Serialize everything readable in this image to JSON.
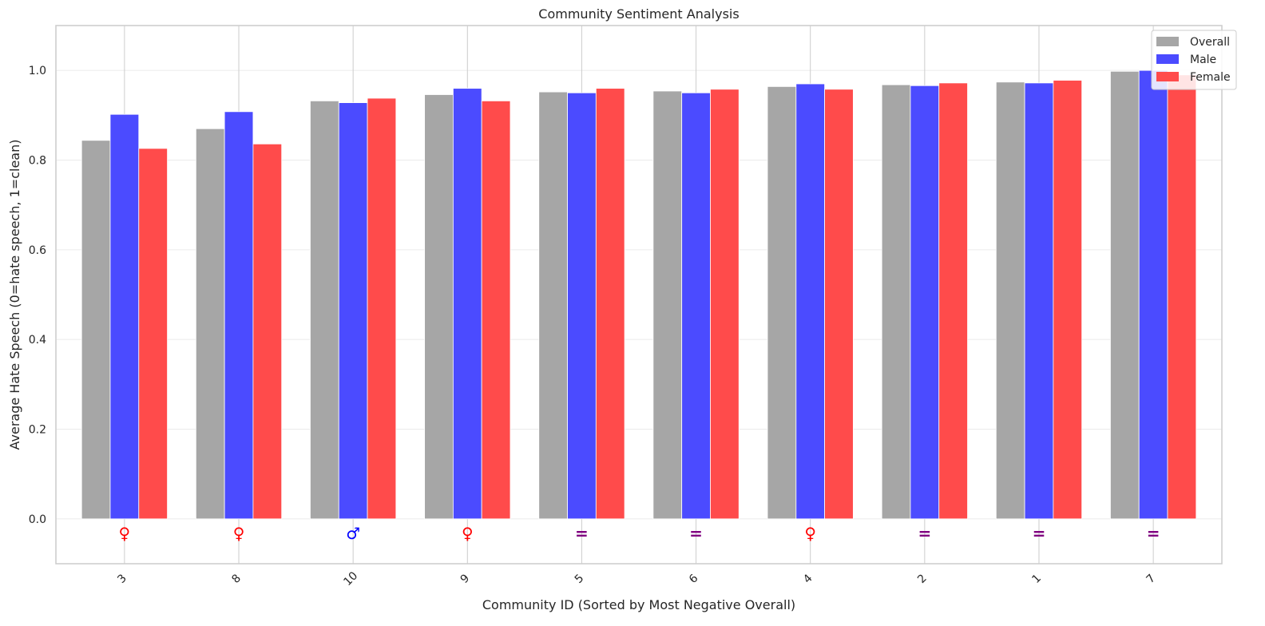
{
  "chart_data": {
    "type": "bar",
    "title": "Community Sentiment Analysis",
    "xlabel": "Community ID (Sorted by Most Negative Overall)",
    "ylabel": "Average Hate Speech (0=hate speech, 1=clean)",
    "categories": [
      "3",
      "8",
      "10",
      "9",
      "5",
      "6",
      "4",
      "2",
      "1",
      "7"
    ],
    "series": [
      {
        "name": "Overall",
        "color": "#a6a6a6",
        "values": [
          0.844,
          0.87,
          0.932,
          0.946,
          0.952,
          0.954,
          0.964,
          0.968,
          0.974,
          0.998
        ]
      },
      {
        "name": "Male",
        "color": "#4b4bff",
        "values": [
          0.902,
          0.908,
          0.928,
          0.96,
          0.95,
          0.95,
          0.97,
          0.966,
          0.972,
          1.0
        ]
      },
      {
        "name": "Female",
        "color": "#ff4b4b",
        "values": [
          0.826,
          0.836,
          0.938,
          0.932,
          0.96,
          0.958,
          0.958,
          0.972,
          0.978,
          0.99
        ]
      }
    ],
    "markers": [
      {
        "symbol": "♀",
        "color": "#ff0000"
      },
      {
        "symbol": "♀",
        "color": "#ff0000"
      },
      {
        "symbol": "♂",
        "color": "#0000ff"
      },
      {
        "symbol": "♀",
        "color": "#ff0000"
      },
      {
        "symbol": "=",
        "color": "#800080"
      },
      {
        "symbol": "=",
        "color": "#800080"
      },
      {
        "symbol": "♀",
        "color": "#ff0000"
      },
      {
        "symbol": "=",
        "color": "#800080"
      },
      {
        "symbol": "=",
        "color": "#800080"
      },
      {
        "symbol": "=",
        "color": "#800080"
      }
    ],
    "ylim": [
      -0.1,
      1.1
    ],
    "yticks": [
      "0.0",
      "0.2",
      "0.4",
      "0.6",
      "0.8",
      "1.0"
    ],
    "grid": true,
    "legend": "top-right",
    "xtick_rotation": "45deg"
  }
}
